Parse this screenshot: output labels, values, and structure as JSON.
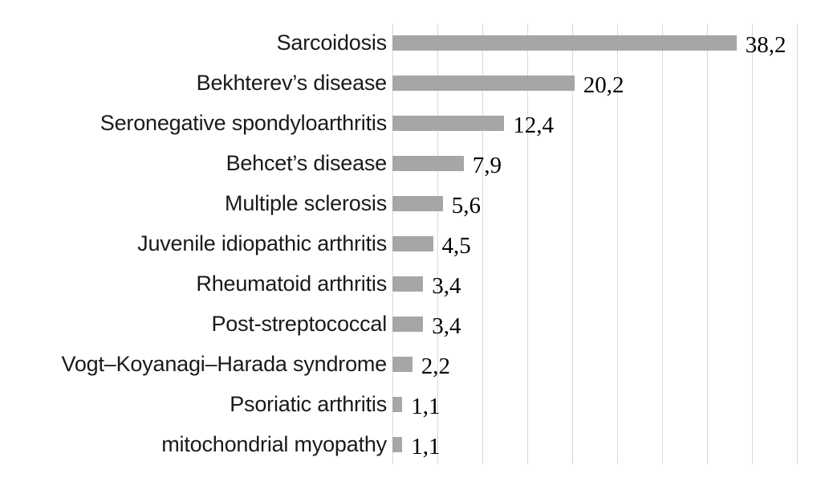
{
  "chart_data": {
    "type": "bar",
    "orientation": "horizontal",
    "title": "",
    "xlabel": "",
    "ylabel": "",
    "categories": [
      "Sarcoidosis",
      "Bekhterev’s disease",
      "Seronegative spondyloarthritis",
      "Behcet’s disease",
      "Multiple sclerosis",
      "Juvenile idiopathic arthritis",
      "Rheumatoid arthritis",
      "Post-streptococcal",
      "Vogt–Koyanagi–Harada syndrome",
      "Psoriatic arthritis",
      "mitochondrial myopathy"
    ],
    "values": [
      38.2,
      20.2,
      12.4,
      7.9,
      5.6,
      4.5,
      3.4,
      3.4,
      2.2,
      1.1,
      1.1
    ],
    "value_labels": [
      "38,2",
      "20,2",
      "12,4",
      "7,9",
      "5,6",
      "4,5",
      "3,4",
      "3,4",
      "2,2",
      "1,1",
      "1,1"
    ],
    "decimal_separator": ",",
    "xlim": [
      0,
      45
    ],
    "gridline_step": 5,
    "grid": true,
    "legend": false,
    "axis_tick_labels_visible": false,
    "colors": {
      "bar": "#a6a6a6",
      "gridline": "#d9d9d9",
      "category_text": "#1a1a1a",
      "value_text": "#000000",
      "background": "#ffffff"
    }
  }
}
